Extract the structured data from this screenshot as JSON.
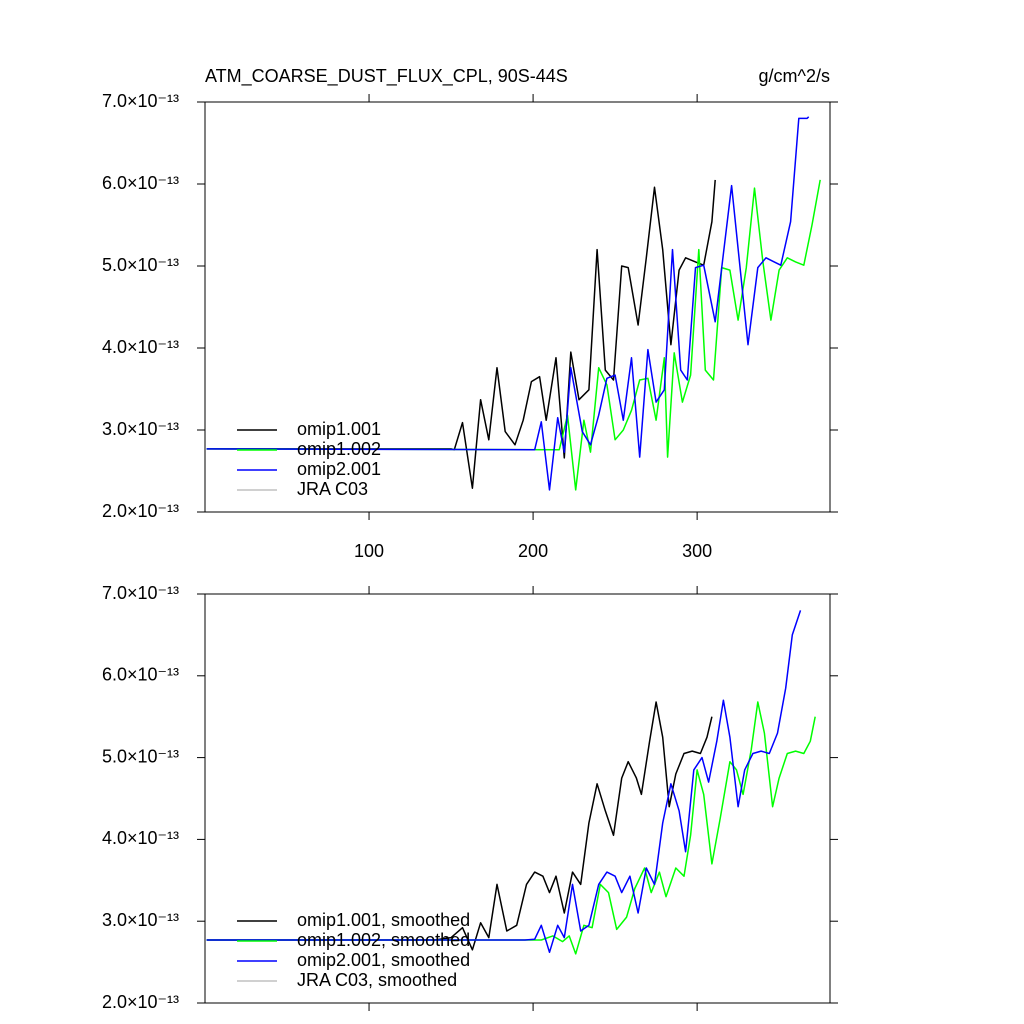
{
  "chart_data": [
    {
      "type": "line",
      "title": "ATM_COARSE_DUST_FLUX_CPL, 90S-44S",
      "units_label": "g/cm^2/s",
      "xlim": [
        0,
        381
      ],
      "xticks": [
        100,
        200,
        300
      ],
      "ylim": [
        2e-13,
        7e-13
      ],
      "yticks": [
        {
          "value": 2e-13,
          "label": "2.0×10⁻¹³"
        },
        {
          "value": 3e-13,
          "label": "3.0×10⁻¹³"
        },
        {
          "value": 4e-13,
          "label": "4.0×10⁻¹³"
        },
        {
          "value": 5e-13,
          "label": "5.0×10⁻¹³"
        },
        {
          "value": 6e-13,
          "label": "6.0×10⁻¹³"
        },
        {
          "value": 7e-13,
          "label": "7.0×10⁻¹³"
        }
      ],
      "legend": "lower left",
      "series": [
        {
          "name": "omip1.001",
          "color": "#000000",
          "x": [
            1,
            150,
            152,
            157,
            163,
            168,
            173,
            178,
            183,
            189,
            194,
            199,
            204,
            208,
            214,
            219,
            223,
            228,
            234,
            239,
            244,
            249,
            254,
            258,
            264,
            269,
            274,
            279,
            284,
            289,
            293,
            299,
            304,
            309,
            311
          ],
          "values": [
            2.77e-13,
            2.77e-13,
            2.76e-13,
            3.09e-13,
            2.29e-13,
            3.37e-13,
            2.88e-13,
            3.76e-13,
            2.98e-13,
            2.82e-13,
            3.12e-13,
            3.59e-13,
            3.65e-13,
            3.12e-13,
            3.88e-13,
            2.66e-13,
            3.95e-13,
            3.37e-13,
            3.49e-13,
            5.2e-13,
            3.73e-13,
            3.61e-13,
            5e-13,
            4.98e-13,
            4.28e-13,
            5.1e-13,
            5.96e-13,
            5.2e-13,
            4.04e-13,
            4.95e-13,
            5.1e-13,
            5.05e-13,
            5.01e-13,
            5.54e-13,
            6.05e-13
          ]
        },
        {
          "name": "omip1.002",
          "color": "#00ff00",
          "x": [
            1,
            216,
            221,
            226,
            231,
            235,
            240,
            245,
            250,
            255,
            260,
            265,
            270,
            275,
            280,
            282,
            286,
            291,
            296,
            301,
            305,
            310,
            315,
            320,
            325,
            330,
            335,
            340,
            345,
            350,
            355,
            360,
            365,
            370,
            375
          ],
          "values": [
            2.77e-13,
            2.76e-13,
            3.18e-13,
            2.27e-13,
            3.12e-13,
            2.73e-13,
            3.76e-13,
            3.55e-13,
            2.88e-13,
            3e-13,
            3.24e-13,
            3.61e-13,
            3.63e-13,
            3.12e-13,
            3.88e-13,
            2.67e-13,
            3.94e-13,
            3.34e-13,
            3.67e-13,
            5.2e-13,
            3.73e-13,
            3.61e-13,
            4.98e-13,
            4.95e-13,
            4.34e-13,
            4.98e-13,
            5.95e-13,
            5.07e-13,
            4.34e-13,
            4.95e-13,
            5.1e-13,
            5.05e-13,
            5.01e-13,
            5.5e-13,
            6.05e-13
          ]
        },
        {
          "name": "omip2.001",
          "color": "#0000ff",
          "x": [
            1,
            201,
            205,
            210,
            215,
            219,
            223,
            230,
            235,
            240,
            245,
            250,
            255,
            260,
            265,
            270,
            275,
            280,
            285,
            290,
            294,
            299,
            304,
            311,
            321,
            331,
            337,
            342,
            347,
            351,
            357,
            362,
            367,
            368
          ],
          "values": [
            2.77e-13,
            2.76e-13,
            3.1e-13,
            2.27e-13,
            3.15e-13,
            2.73e-13,
            3.76e-13,
            2.98e-13,
            2.82e-13,
            3.18e-13,
            3.63e-13,
            3.67e-13,
            3.12e-13,
            3.88e-13,
            2.67e-13,
            3.98e-13,
            3.34e-13,
            3.49e-13,
            5.2e-13,
            3.73e-13,
            3.61e-13,
            4.98e-13,
            5.01e-13,
            4.32e-13,
            5.98e-13,
            4.04e-13,
            4.98e-13,
            5.1e-13,
            5.05e-13,
            5.01e-13,
            5.54e-13,
            6.8e-13,
            6.8e-13,
            6.82e-13
          ]
        },
        {
          "name": "JRA C03",
          "color": "#c0c0c0",
          "x": [],
          "values": []
        }
      ]
    },
    {
      "type": "line",
      "xlim": [
        0,
        381
      ],
      "xticks": [
        100,
        200,
        300
      ],
      "ylim": [
        2e-13,
        7e-13
      ],
      "yticks": [
        {
          "value": 2e-13,
          "label": "2.0×10⁻¹³"
        },
        {
          "value": 3e-13,
          "label": "3.0×10⁻¹³"
        },
        {
          "value": 4e-13,
          "label": "4.0×10⁻¹³"
        },
        {
          "value": 5e-13,
          "label": "5.0×10⁻¹³"
        },
        {
          "value": 6e-13,
          "label": "6.0×10⁻¹³"
        },
        {
          "value": 7e-13,
          "label": "7.0×10⁻¹³"
        }
      ],
      "legend": "lower left",
      "series": [
        {
          "name": "omip1.001, smoothed",
          "color": "#000000",
          "x": [
            1,
            140,
            150,
            157,
            163,
            168,
            173,
            178,
            184,
            190,
            196,
            201,
            206,
            210,
            214,
            219,
            224,
            229,
            234,
            239,
            244,
            249,
            254,
            258,
            263,
            266,
            271,
            275,
            279,
            283,
            287,
            292,
            297,
            302,
            306,
            309
          ],
          "values": [
            2.77e-13,
            2.77e-13,
            2.8e-13,
            2.92e-13,
            2.65e-13,
            2.98e-13,
            2.8e-13,
            3.45e-13,
            2.88e-13,
            2.95e-13,
            3.45e-13,
            3.6e-13,
            3.55e-13,
            3.35e-13,
            3.55e-13,
            3.1e-13,
            3.6e-13,
            3.45e-13,
            4.2e-13,
            4.68e-13,
            4.35e-13,
            4.05e-13,
            4.75e-13,
            4.95e-13,
            4.75e-13,
            4.55e-13,
            5.2e-13,
            5.68e-13,
            5.25e-13,
            4.4e-13,
            4.8e-13,
            5.05e-13,
            5.08e-13,
            5.05e-13,
            5.25e-13,
            5.5e-13
          ]
        },
        {
          "name": "omip1.002, smoothed",
          "color": "#00ff00",
          "x": [
            1,
            200,
            205,
            212,
            218,
            222,
            226,
            231,
            236,
            241,
            246,
            251,
            257,
            262,
            268,
            272,
            277,
            281,
            287,
            292,
            296,
            300,
            304,
            309,
            314,
            320,
            324,
            328,
            333,
            337,
            341,
            346,
            350,
            355,
            360,
            365,
            369,
            372
          ],
          "values": [
            2.77e-13,
            2.77e-13,
            2.77e-13,
            2.82e-13,
            2.75e-13,
            2.82e-13,
            2.6e-13,
            2.95e-13,
            2.92e-13,
            3.45e-13,
            3.35e-13,
            2.9e-13,
            3.05e-13,
            3.4e-13,
            3.65e-13,
            3.35e-13,
            3.6e-13,
            3.3e-13,
            3.65e-13,
            3.55e-13,
            4.05e-13,
            4.85e-13,
            4.55e-13,
            3.7e-13,
            4.25e-13,
            4.95e-13,
            4.85e-13,
            4.55e-13,
            5.1e-13,
            5.68e-13,
            5.3e-13,
            4.4e-13,
            4.75e-13,
            5.05e-13,
            5.08e-13,
            5.05e-13,
            5.2e-13,
            5.5e-13
          ]
        },
        {
          "name": "omip2.001, smoothed",
          "color": "#0000ff",
          "x": [
            1,
            195,
            201,
            205,
            210,
            215,
            219,
            224,
            229,
            234,
            240,
            245,
            250,
            254,
            259,
            264,
            269,
            274,
            279,
            284,
            289,
            293,
            298,
            303,
            307,
            312,
            316,
            320,
            325,
            329,
            334,
            339,
            344,
            349,
            354,
            358,
            363
          ],
          "values": [
            2.77e-13,
            2.77e-13,
            2.78e-13,
            2.95e-13,
            2.62e-13,
            2.95e-13,
            2.8e-13,
            3.45e-13,
            2.88e-13,
            2.95e-13,
            3.45e-13,
            3.6e-13,
            3.55e-13,
            3.35e-13,
            3.55e-13,
            3.1e-13,
            3.65e-13,
            3.45e-13,
            4.2e-13,
            4.68e-13,
            4.35e-13,
            3.85e-13,
            4.85e-13,
            5e-13,
            4.7e-13,
            5.2e-13,
            5.7e-13,
            5.25e-13,
            4.4e-13,
            4.85e-13,
            5.05e-13,
            5.08e-13,
            5.05e-13,
            5.3e-13,
            5.85e-13,
            6.5e-13,
            6.8e-13
          ]
        },
        {
          "name": "JRA C03, smoothed",
          "color": "#c0c0c0",
          "x": [],
          "values": []
        }
      ]
    }
  ]
}
